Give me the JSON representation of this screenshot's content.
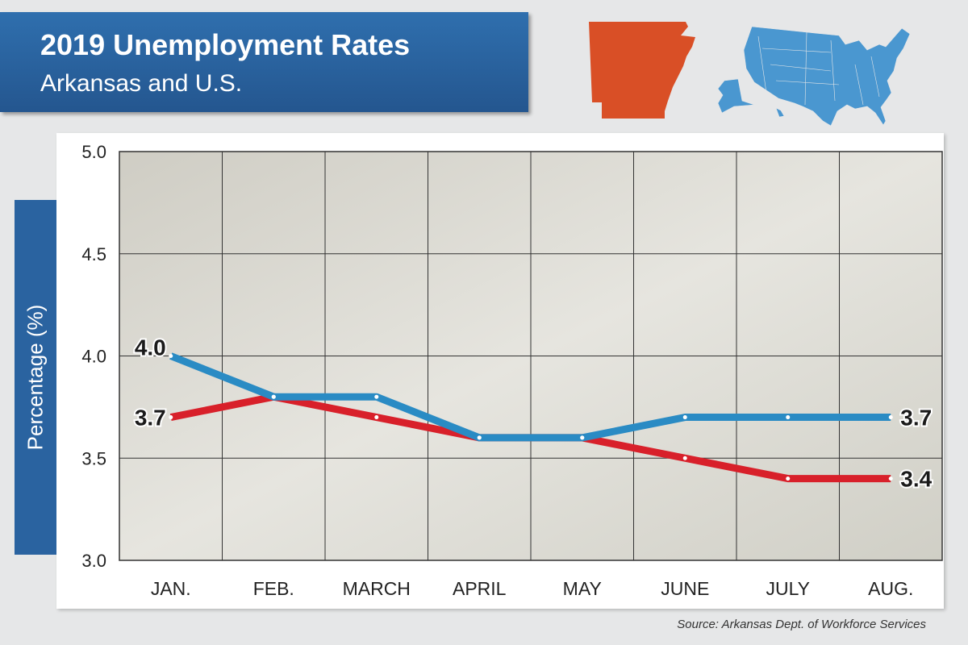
{
  "header": {
    "title": "2019 Unemployment Rates",
    "subtitle": "Arkansas and U.S."
  },
  "source": "Source: Arkansas Dept. of Workforce Services",
  "colors": {
    "us": "#2a8bc4",
    "arkansas": "#d8202a",
    "arkansas_map": "#d94f26",
    "us_map": "#4a97d0"
  },
  "chart_data": {
    "type": "line",
    "title": "2019 Unemployment Rates",
    "subtitle": "Arkansas and U.S.",
    "xlabel": "",
    "ylabel": "Percentage (%)",
    "ylim": [
      3.0,
      5.0
    ],
    "yticks": [
      "3.0",
      "3.5",
      "4.0",
      "4.5",
      "5.0"
    ],
    "categories": [
      "JAN.",
      "FEB.",
      "MARCH",
      "APRIL",
      "MAY",
      "JUNE",
      "JULY",
      "AUG."
    ],
    "grid": true,
    "series": [
      {
        "name": "U.S.",
        "values": [
          4.0,
          3.8,
          3.8,
          3.6,
          3.6,
          3.7,
          3.7,
          3.7
        ],
        "labels": {
          "start": "4.0",
          "end": "3.7"
        }
      },
      {
        "name": "Arkansas",
        "values": [
          3.7,
          3.8,
          3.7,
          3.6,
          3.6,
          3.5,
          3.4,
          3.4
        ],
        "labels": {
          "start": "3.7",
          "end": "3.4"
        }
      }
    ]
  }
}
